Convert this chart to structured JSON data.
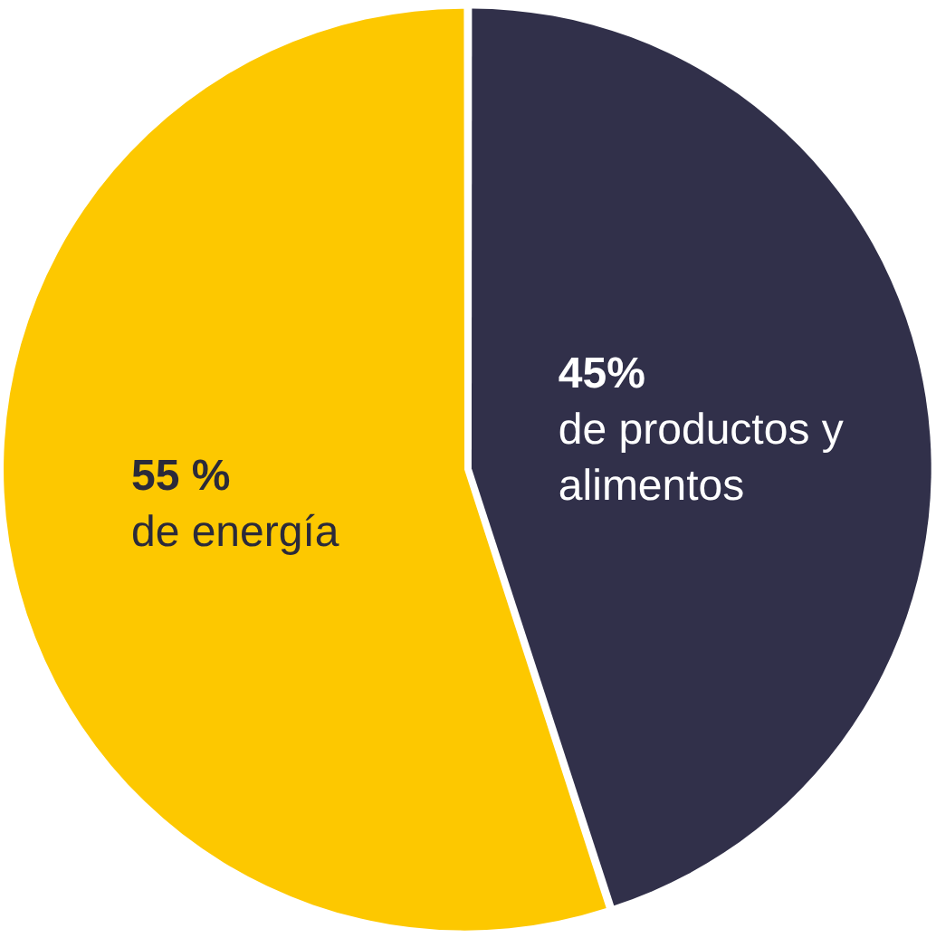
{
  "chart_data": {
    "type": "pie",
    "categories": [
      "de productos y alimentos",
      "de energía"
    ],
    "values": [
      45,
      55
    ],
    "colors": [
      "#31304a",
      "#fdc800"
    ],
    "value_labels": [
      "45%",
      "55 %"
    ],
    "legend": false
  }
}
